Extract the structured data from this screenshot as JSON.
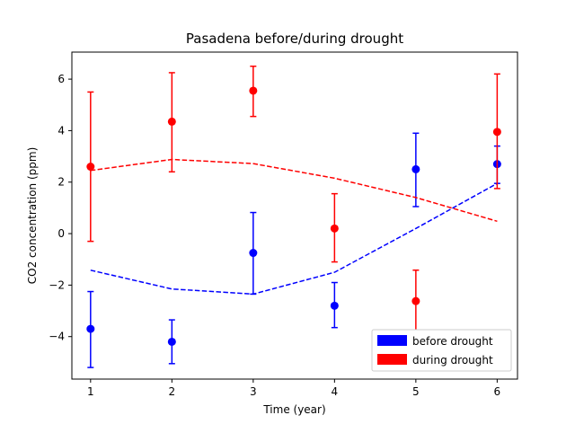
{
  "chart_data": {
    "type": "scatter",
    "title": "Pasadena before/during drought",
    "xlabel": "Time (year)",
    "ylabel": "CO2 concentration (ppm)",
    "xlim": [
      0.77,
      6.25
    ],
    "ylim": [
      -5.65,
      7.05
    ],
    "xticks": [
      1,
      2,
      3,
      4,
      5,
      6
    ],
    "yticks": [
      -4,
      -2,
      0,
      2,
      4,
      6
    ],
    "grid": false,
    "legend_position": "lower-right",
    "colors": {
      "before": "#0000ff",
      "during": "#ff0000"
    },
    "series": [
      {
        "name": "before drought",
        "color": "#0000ff",
        "x": [
          1,
          2,
          3,
          4,
          5,
          6
        ],
        "y": [
          -3.7,
          -4.2,
          -0.75,
          -2.8,
          2.5,
          2.7
        ],
        "err_low": [
          -5.2,
          -5.05,
          -2.35,
          -3.65,
          1.05,
          1.95
        ],
        "err_high": [
          -2.25,
          -3.35,
          0.82,
          -1.9,
          3.9,
          3.4
        ],
        "trend": [
          -1.42,
          -2.15,
          -2.35,
          -1.5,
          0.2,
          1.95
        ]
      },
      {
        "name": "during drought",
        "color": "#ff0000",
        "x": [
          1,
          2,
          3,
          4,
          5,
          6
        ],
        "y": [
          2.6,
          4.35,
          5.55,
          0.2,
          -2.62,
          3.95
        ],
        "err_low": [
          -0.3,
          2.4,
          4.55,
          -1.1,
          -3.8,
          1.75
        ],
        "err_high": [
          5.5,
          6.25,
          6.5,
          1.55,
          -1.42,
          6.2
        ],
        "trend": [
          2.45,
          2.88,
          2.72,
          2.15,
          1.4,
          0.48
        ]
      }
    ]
  }
}
